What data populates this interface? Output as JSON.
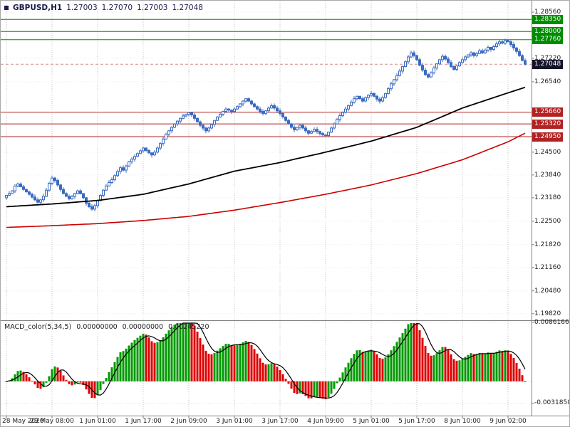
{
  "header": {
    "symbol": "GBPUSD,H1",
    "open": "1.27003",
    "high": "1.27070",
    "low": "1.27003",
    "close": "1.27048"
  },
  "indicator": {
    "name": "MACD_color(5,34,5)",
    "values": [
      "0.00000000",
      "0.00000000",
      "0.00245220"
    ]
  },
  "colors": {
    "background": "#ffffff",
    "grid": "#c3c3c3",
    "grid_faint": "#ededed",
    "candle": "#3a6bc0",
    "candle_bull_fill": "#ffffff",
    "ma_fast": "#000000",
    "ma_slow": "#cc0000",
    "level_green": "#008c00",
    "level_red": "#b22222",
    "badge_current": "#15152a",
    "macd_up": "#009900",
    "macd_down": "#dd0000",
    "macd_signal": "#000000",
    "bid_line": "#d08a8a",
    "separator": "#808080",
    "axis_text": "#1a1a1a"
  },
  "price_axis": {
    "ticks": [
      {
        "label": "1.28560",
        "value": 1.2856
      },
      {
        "label": "1.27220",
        "value": 1.2722
      },
      {
        "label": "1.26540",
        "value": 1.2654
      },
      {
        "label": "1.24500",
        "value": 1.245
      },
      {
        "label": "1.23840",
        "value": 1.2384
      },
      {
        "label": "1.23180",
        "value": 1.2318
      },
      {
        "label": "1.22500",
        "value": 1.225
      },
      {
        "label": "1.21820",
        "value": 1.2182
      },
      {
        "label": "1.21160",
        "value": 1.2116
      },
      {
        "label": "1.20480",
        "value": 1.2048
      },
      {
        "label": "1.19820",
        "value": 1.1982
      }
    ],
    "levels": [
      {
        "label": "1.28350",
        "value": 1.2835,
        "color": "green"
      },
      {
        "label": "1.28000",
        "value": 1.28,
        "color": "green"
      },
      {
        "label": "1.27760",
        "value": 1.2776,
        "color": "green"
      },
      {
        "label": "1.25660",
        "value": 1.2566,
        "color": "red"
      },
      {
        "label": "1.25320",
        "value": 1.2532,
        "color": "red"
      },
      {
        "label": "1.24950",
        "value": 1.2495,
        "color": "red"
      }
    ],
    "current": {
      "label": "1.27048",
      "value": 1.27048
    }
  },
  "macd_axis": {
    "ticks": [
      {
        "label": "0.0086166",
        "value": 0.0086166
      },
      {
        "label": "-0.0031850",
        "value": -0.003185
      }
    ]
  },
  "time_axis": {
    "labels": [
      {
        "label": "28 May 2020",
        "bar": 0
      },
      {
        "label": "29 May 08:00",
        "bar": 16
      },
      {
        "label": "1 Jun 01:00",
        "bar": 32
      },
      {
        "label": "1 Jun 17:00",
        "bar": 48
      },
      {
        "label": "2 Jun 09:00",
        "bar": 64
      },
      {
        "label": "3 Jun 01:00",
        "bar": 80
      },
      {
        "label": "3 Jun 17:00",
        "bar": 96
      },
      {
        "label": "4 Jun 09:00",
        "bar": 112
      },
      {
        "label": "5 Jun 01:00",
        "bar": 128
      },
      {
        "label": "5 Jun 17:00",
        "bar": 144
      },
      {
        "label": "8 Jun 10:00",
        "bar": 160
      },
      {
        "label": "9 Jun 02:00",
        "bar": 176
      }
    ]
  },
  "chart_data": {
    "type": "candlestick",
    "symbol": "GBPUSD",
    "timeframe": "H1",
    "title": "GBPUSD,H1 1.27003 1.27070 1.27003 1.27048",
    "bars": 183,
    "ylim_main": [
      1.1965,
      1.2889
    ],
    "closes": [
      1.2325,
      1.233,
      1.2338,
      1.2352,
      1.2358,
      1.235,
      1.2342,
      1.2335,
      1.2328,
      1.232,
      1.2312,
      1.2305,
      1.2312,
      1.2322,
      1.234,
      1.236,
      1.2375,
      1.2368,
      1.2355,
      1.2342,
      1.233,
      1.2322,
      1.2315,
      1.2322,
      1.233,
      1.2338,
      1.233,
      1.2318,
      1.2302,
      1.2292,
      1.2285,
      1.2295,
      1.231,
      1.2325,
      1.234,
      1.2352,
      1.2362,
      1.237,
      1.2382,
      1.2394,
      1.2405,
      1.2398,
      1.241,
      1.2422,
      1.243,
      1.2438,
      1.2446,
      1.2454,
      1.2462,
      1.2455,
      1.2448,
      1.2442,
      1.245,
      1.2462,
      1.2475,
      1.2488,
      1.2502,
      1.2512,
      1.2522,
      1.2532,
      1.254,
      1.2548,
      1.2555,
      1.256,
      1.2565,
      1.2558,
      1.2548,
      1.2538,
      1.2528,
      1.252,
      1.2512,
      1.252,
      1.253,
      1.2542,
      1.2552,
      1.256,
      1.2568,
      1.2575,
      1.2572,
      1.2568,
      1.2575,
      1.2582,
      1.259,
      1.2598,
      1.2605,
      1.2598,
      1.259,
      1.2582,
      1.2575,
      1.2568,
      1.2562,
      1.257,
      1.2578,
      1.2585,
      1.2578,
      1.257,
      1.2562,
      1.2552,
      1.2542,
      1.2532,
      1.2522,
      1.2515,
      1.2522,
      1.2528,
      1.252,
      1.2512,
      1.2505,
      1.251,
      1.2516,
      1.251,
      1.2504,
      1.25,
      1.2498,
      1.2508,
      1.252,
      1.2532,
      1.2545,
      1.2556,
      1.2565,
      1.2575,
      1.2585,
      1.2595,
      1.2605,
      1.2612,
      1.2605,
      1.2598,
      1.2608,
      1.2615,
      1.262,
      1.2612,
      1.2604,
      1.2598,
      1.2608,
      1.262,
      1.2634,
      1.2648,
      1.266,
      1.2672,
      1.2685,
      1.2698,
      1.2712,
      1.2726,
      1.2738,
      1.273,
      1.2718,
      1.2702,
      1.2688,
      1.2675,
      1.2668,
      1.268,
      1.2694,
      1.2706,
      1.2718,
      1.2728,
      1.272,
      1.271,
      1.2698,
      1.269,
      1.27,
      1.271,
      1.2718,
      1.2726,
      1.2732,
      1.2738,
      1.273,
      1.2736,
      1.2744,
      1.2738,
      1.2746,
      1.2754,
      1.2748,
      1.2756,
      1.2764,
      1.277,
      1.2766,
      1.2774,
      1.277,
      1.2762,
      1.2752,
      1.2742,
      1.273,
      1.2716,
      1.27048
    ],
    "levels": {
      "green": [
        1.2835,
        1.28,
        1.2776
      ],
      "red": [
        1.2566,
        1.2532,
        1.2495
      ]
    },
    "current_price": 1.27048,
    "ma_fast_points": [
      [
        0,
        1.2292
      ],
      [
        16,
        1.23
      ],
      [
        32,
        1.231
      ],
      [
        48,
        1.2328
      ],
      [
        64,
        1.2358
      ],
      [
        80,
        1.2395
      ],
      [
        96,
        1.242
      ],
      [
        112,
        1.245
      ],
      [
        128,
        1.2482
      ],
      [
        144,
        1.2522
      ],
      [
        160,
        1.2578
      ],
      [
        176,
        1.2622
      ],
      [
        182,
        1.2638
      ]
    ],
    "ma_slow_points": [
      [
        0,
        1.2232
      ],
      [
        16,
        1.2237
      ],
      [
        32,
        1.2243
      ],
      [
        48,
        1.2252
      ],
      [
        64,
        1.2264
      ],
      [
        80,
        1.2282
      ],
      [
        96,
        1.2304
      ],
      [
        112,
        1.2328
      ],
      [
        128,
        1.2355
      ],
      [
        144,
        1.2388
      ],
      [
        160,
        1.2428
      ],
      [
        176,
        1.248
      ],
      [
        182,
        1.2505
      ]
    ],
    "macd": {
      "fast": 5,
      "slow": 34,
      "signal_period": 5,
      "current_value": 0.0024522
    },
    "ylim_macd": [
      -0.0048,
      0.0086166
    ]
  }
}
